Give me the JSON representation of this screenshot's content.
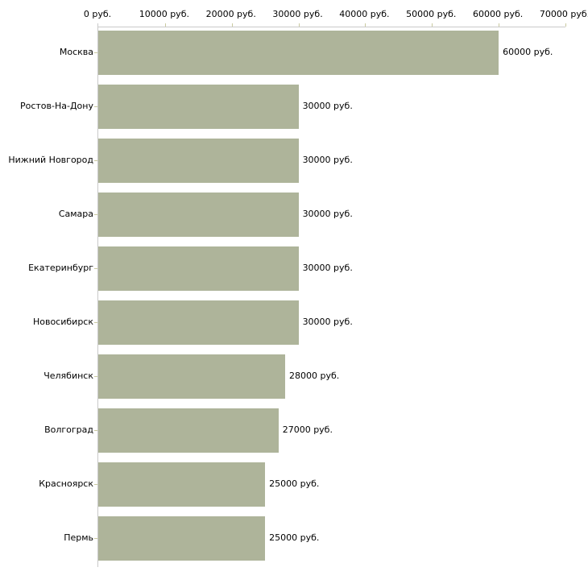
{
  "chart_data": {
    "type": "bar",
    "orientation": "horizontal",
    "title": "",
    "xlabel": "",
    "ylabel": "",
    "categories": [
      "Москва",
      "Ростов-На-Дону",
      "Нижний Новгород",
      "Самара",
      "Екатеринбург",
      "Новосибирск",
      "Челябинск",
      "Волгоград",
      "Красноярск",
      "Пермь"
    ],
    "values": [
      60000,
      30000,
      30000,
      30000,
      30000,
      30000,
      28000,
      27000,
      25000,
      25000
    ],
    "value_labels": [
      "60000 руб.",
      "30000 руб.",
      "30000 руб.",
      "30000 руб.",
      "30000 руб.",
      "30000 руб.",
      "28000 руб.",
      "27000 руб.",
      "25000 руб.",
      "25000 руб."
    ],
    "x_tick_labels": [
      "0 руб.",
      "10000 руб.",
      "20000 руб.",
      "30000 руб.",
      "40000 руб.",
      "50000 руб.",
      "60000 руб.",
      "70000 руб."
    ],
    "xlim": [
      0,
      70000
    ],
    "x_tick_step": 10000,
    "grid": false,
    "legend_position": "none",
    "colors": {
      "bar_fill": "#aeb49a",
      "axis_line": "#c9c9c9",
      "tick_mark": "#c9c9a0",
      "text": "#000000",
      "background": "#ffffff"
    }
  }
}
